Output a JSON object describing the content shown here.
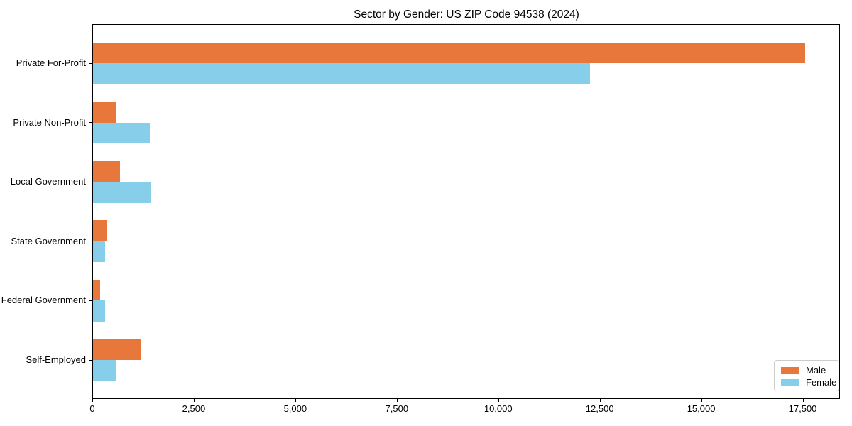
{
  "chart_data": {
    "type": "bar",
    "orientation": "horizontal",
    "title": "Sector by Gender: US ZIP Code 94538 (2024)",
    "xlabel": "",
    "ylabel": "",
    "categories": [
      "Private For-Profit",
      "Private Non-Profit",
      "Local Government",
      "State Government",
      "Federal Government",
      "Self-Employed"
    ],
    "series": [
      {
        "name": "Male",
        "color": "#e8773b",
        "values": [
          17550,
          580,
          670,
          340,
          180,
          1190
        ]
      },
      {
        "name": "Female",
        "color": "#87ceeb",
        "values": [
          12240,
          1400,
          1420,
          290,
          300,
          570
        ]
      }
    ],
    "xlim": [
      0,
      18400
    ],
    "xticks": [
      {
        "value": 0,
        "label": "0"
      },
      {
        "value": 2500,
        "label": "2,500"
      },
      {
        "value": 5000,
        "label": "5,000"
      },
      {
        "value": 7500,
        "label": "7,500"
      },
      {
        "value": 10000,
        "label": "10,000"
      },
      {
        "value": 12500,
        "label": "12,500"
      },
      {
        "value": 15000,
        "label": "15,000"
      },
      {
        "value": 17500,
        "label": "17,500"
      }
    ],
    "grid": false,
    "legend_position": "lower right"
  }
}
